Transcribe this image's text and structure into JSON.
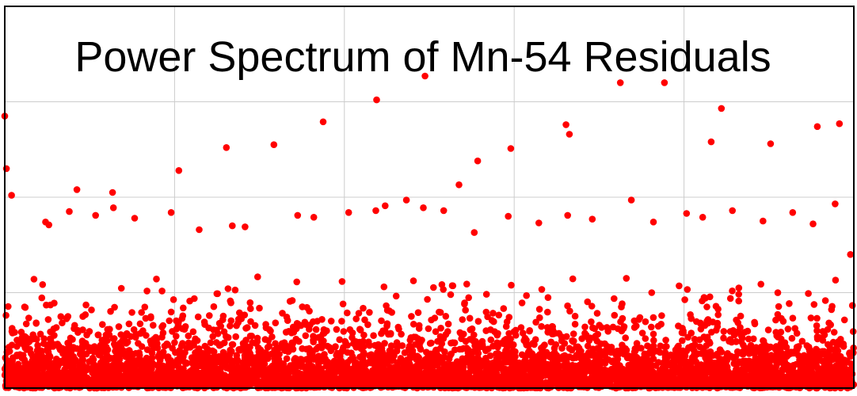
{
  "chart_data": {
    "type": "scatter",
    "title": "Power Spectrum of Mn-54 Residuals",
    "xlabel": "",
    "ylabel": "",
    "xlim": [
      0,
      1
    ],
    "ylim": [
      0,
      4
    ],
    "grid": true,
    "series": [
      {
        "color": "#ff0000",
        "marker": "circle",
        "x": [
          0.0,
          0.002,
          0.008,
          0.085,
          0.127,
          0.205,
          0.261,
          0.317,
          0.375,
          0.438,
          0.495,
          0.535,
          0.557,
          0.596,
          0.661,
          0.665,
          0.725,
          0.777,
          0.832,
          0.844,
          0.902,
          0.957,
          0.983,
          0.048,
          0.052,
          0.076,
          0.107,
          0.128,
          0.153,
          0.196,
          0.229,
          0.268,
          0.283,
          0.345,
          0.364,
          0.405,
          0.437,
          0.448,
          0.473,
          0.493,
          0.517,
          0.553,
          0.593,
          0.629,
          0.663,
          0.692,
          0.738,
          0.764,
          0.803,
          0.822,
          0.857,
          0.893,
          0.928,
          0.952,
          0.978,
          0.996
        ],
        "y": [
          2.85,
          2.3,
          2.02,
          2.08,
          2.05,
          2.28,
          2.52,
          2.55,
          2.79,
          3.02,
          3.27,
          2.13,
          2.38,
          2.51,
          2.76,
          2.66,
          3.2,
          3.2,
          2.58,
          2.93,
          2.56,
          2.74,
          2.77,
          1.74,
          1.71,
          1.85,
          1.81,
          1.89,
          1.78,
          1.84,
          1.66,
          1.7,
          1.69,
          1.81,
          1.79,
          1.84,
          1.86,
          1.91,
          1.97,
          1.89,
          1.86,
          1.63,
          1.8,
          1.73,
          1.81,
          1.77,
          1.97,
          1.74,
          1.83,
          1.79,
          1.86,
          1.75,
          1.84,
          1.72,
          1.93,
          1.4
        ]
      }
    ]
  }
}
